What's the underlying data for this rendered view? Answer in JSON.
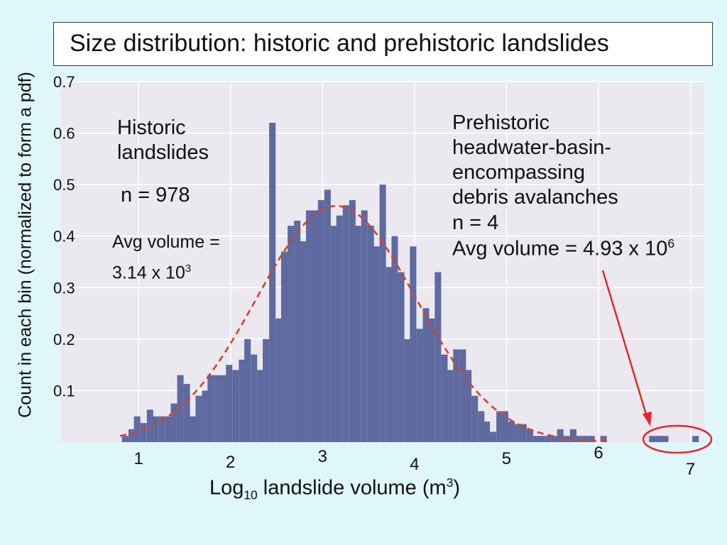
{
  "title": "Size distribution: historic and prehistoric landslides",
  "annotations": {
    "historic_name_line1": "Historic",
    "historic_name_line2": "landslides",
    "historic_n": "n = 978",
    "historic_avg_line1": "Avg volume =",
    "historic_avg_line2_base": "3.14 x 10",
    "historic_avg_line2_exp": "3",
    "prehistoric_line1": "Prehistoric",
    "prehistoric_line2": "headwater-basin-",
    "prehistoric_line3": "encompassing",
    "prehistoric_line4": "debris avalanches",
    "prehistoric_n": "n = 4",
    "prehistoric_avg_base": "Avg volume = 4.93 x 10",
    "prehistoric_avg_exp": "6"
  },
  "axes": {
    "ylabel": "Count in each bin (normalized to form a pdf)",
    "xlabel_prefix": "Log",
    "xlabel_sub": "10",
    "xlabel_middle": " landslide volume (m",
    "xlabel_sup": "3",
    "xlabel_suffix": ")"
  },
  "colors": {
    "bar": "#5e6aa0",
    "fit_curve": "#d9402a",
    "arrow": "#e8262a",
    "circle": "#e8262a",
    "plot_bg": "#ebe8f0",
    "grid": "#ffffff"
  },
  "chart_data": {
    "type": "bar",
    "xlim": [
      0.15,
      7.15
    ],
    "ylim": [
      0,
      0.7
    ],
    "yticks": [
      "0.1",
      "0.2",
      "0.3",
      "0.4",
      "0.5",
      "0.6",
      "0.7"
    ],
    "xticks": [
      "1",
      "2",
      "3",
      "4",
      "5",
      "6",
      "7"
    ],
    "bin_width": 0.0667,
    "grid": true,
    "series": [
      {
        "bins": [
          [
            0.82,
            0.012
          ],
          [
            0.89,
            0.025
          ],
          [
            0.95,
            0.05
          ],
          [
            1.02,
            0.037
          ],
          [
            1.09,
            0.063
          ],
          [
            1.15,
            0.05
          ],
          [
            1.22,
            0.05
          ],
          [
            1.29,
            0.05
          ],
          [
            1.35,
            0.075
          ],
          [
            1.42,
            0.13
          ],
          [
            1.49,
            0.113
          ],
          [
            1.55,
            0.05
          ],
          [
            1.62,
            0.09
          ],
          [
            1.69,
            0.1
          ],
          [
            1.75,
            0.13
          ],
          [
            1.82,
            0.13
          ],
          [
            1.89,
            0.13
          ],
          [
            1.95,
            0.15
          ],
          [
            2.02,
            0.14
          ],
          [
            2.09,
            0.16
          ],
          [
            2.15,
            0.2
          ],
          [
            2.22,
            0.17
          ],
          [
            2.29,
            0.14
          ],
          [
            2.35,
            0.2
          ],
          [
            2.42,
            0.62
          ],
          [
            2.49,
            0.24
          ],
          [
            2.55,
            0.37
          ],
          [
            2.62,
            0.42
          ],
          [
            2.69,
            0.43
          ],
          [
            2.75,
            0.39
          ],
          [
            2.82,
            0.45
          ],
          [
            2.89,
            0.45
          ],
          [
            2.95,
            0.47
          ],
          [
            3.02,
            0.49
          ],
          [
            3.09,
            0.42
          ],
          [
            3.15,
            0.44
          ],
          [
            3.22,
            0.46
          ],
          [
            3.29,
            0.47
          ],
          [
            3.35,
            0.42
          ],
          [
            3.42,
            0.45
          ],
          [
            3.49,
            0.42
          ],
          [
            3.55,
            0.38
          ],
          [
            3.62,
            0.5
          ],
          [
            3.69,
            0.34
          ],
          [
            3.75,
            0.4
          ],
          [
            3.82,
            0.33
          ],
          [
            3.89,
            0.2
          ],
          [
            3.95,
            0.38
          ],
          [
            4.02,
            0.22
          ],
          [
            4.09,
            0.26
          ],
          [
            4.15,
            0.24
          ],
          [
            4.22,
            0.33
          ],
          [
            4.29,
            0.17
          ],
          [
            4.35,
            0.14
          ],
          [
            4.42,
            0.18
          ],
          [
            4.49,
            0.18
          ],
          [
            4.55,
            0.14
          ],
          [
            4.62,
            0.09
          ],
          [
            4.69,
            0.06
          ],
          [
            4.75,
            0.04
          ],
          [
            4.82,
            0.02
          ],
          [
            4.89,
            0.06
          ],
          [
            4.95,
            0.06
          ],
          [
            5.02,
            0.04
          ],
          [
            5.09,
            0.035
          ],
          [
            5.15,
            0.035
          ],
          [
            5.22,
            0.025
          ],
          [
            5.29,
            0.012
          ],
          [
            5.35,
            0.012
          ],
          [
            5.42,
            0.012
          ],
          [
            5.49,
            0.012
          ],
          [
            5.55,
            0.025
          ],
          [
            5.62,
            0.012
          ],
          [
            5.69,
            0.025
          ],
          [
            5.75,
            0.012
          ],
          [
            5.82,
            0.012
          ],
          [
            5.89,
            0.012
          ],
          [
            6.02,
            0.012
          ],
          [
            6.55,
            0.012
          ],
          [
            6.62,
            0.012
          ],
          [
            6.69,
            0.012
          ],
          [
            7.02,
            0.012
          ]
        ]
      },
      {
        "curve": "normal pdf",
        "mean": 3.15,
        "sd": 0.87,
        "x_range": [
          0.8,
          6.1
        ]
      }
    ]
  }
}
